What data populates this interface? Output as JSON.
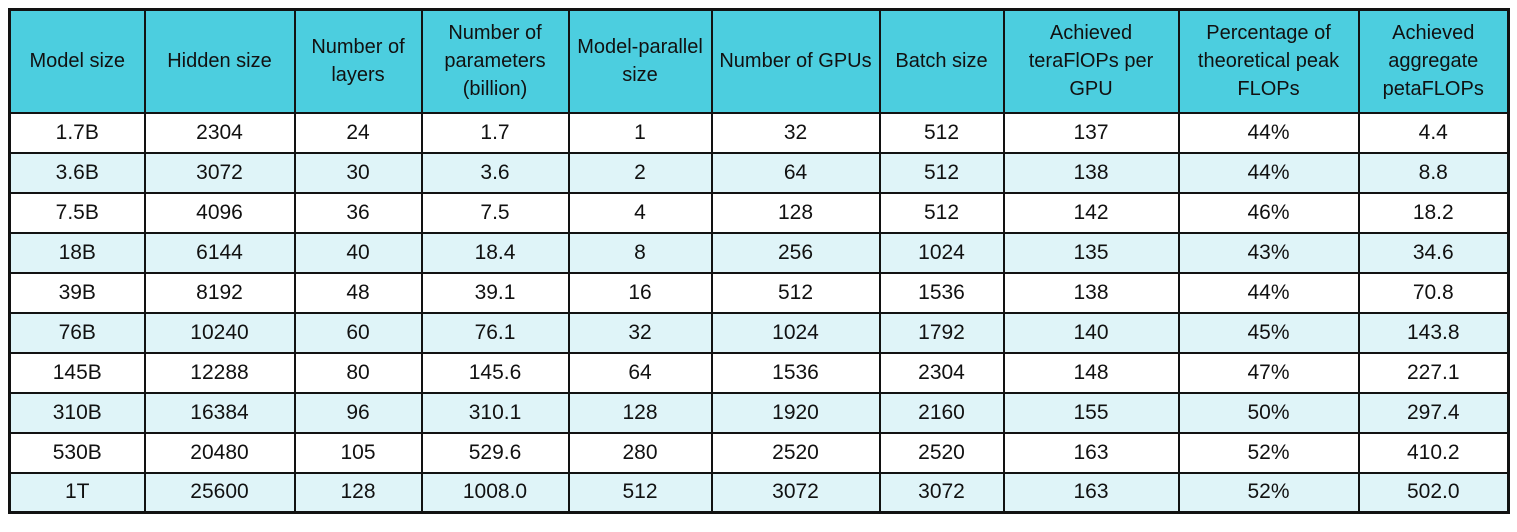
{
  "chart_data": {
    "type": "table",
    "title": "",
    "columns": [
      "Model size",
      "Hidden size",
      "Number of layers",
      "Number of parameters (billion)",
      "Model-parallel size",
      "Number of GPUs",
      "Batch size",
      "Achieved teraFlOPs per GPU",
      "Percentage of theoretical peak FLOPs",
      "Achieved aggregate petaFLOPs"
    ],
    "rows": [
      [
        "1.7B",
        "2304",
        "24",
        "1.7",
        "1",
        "32",
        "512",
        "137",
        "44%",
        "4.4"
      ],
      [
        "3.6B",
        "3072",
        "30",
        "3.6",
        "2",
        "64",
        "512",
        "138",
        "44%",
        "8.8"
      ],
      [
        "7.5B",
        "4096",
        "36",
        "7.5",
        "4",
        "128",
        "512",
        "142",
        "46%",
        "18.2"
      ],
      [
        "18B",
        "6144",
        "40",
        "18.4",
        "8",
        "256",
        "1024",
        "135",
        "43%",
        "34.6"
      ],
      [
        "39B",
        "8192",
        "48",
        "39.1",
        "16",
        "512",
        "1536",
        "138",
        "44%",
        "70.8"
      ],
      [
        "76B",
        "10240",
        "60",
        "76.1",
        "32",
        "1024",
        "1792",
        "140",
        "45%",
        "143.8"
      ],
      [
        "145B",
        "12288",
        "80",
        "145.6",
        "64",
        "1536",
        "2304",
        "148",
        "47%",
        "227.1"
      ],
      [
        "310B",
        "16384",
        "96",
        "310.1",
        "128",
        "1920",
        "2160",
        "155",
        "50%",
        "297.4"
      ],
      [
        "530B",
        "20480",
        "105",
        "529.6",
        "280",
        "2520",
        "2520",
        "163",
        "52%",
        "410.2"
      ],
      [
        "1T",
        "25600",
        "128",
        "1008.0",
        "512",
        "3072",
        "3072",
        "163",
        "52%",
        "502.0"
      ]
    ],
    "colors": {
      "header_bg": "#4CCEDF",
      "row_alt_bg": "#DFF4F8",
      "border": "#121212",
      "text": "#111111"
    },
    "layout_hints": {
      "grid": "all-borders",
      "row_striping": "even rows light cyan",
      "header_rows": 1
    }
  }
}
